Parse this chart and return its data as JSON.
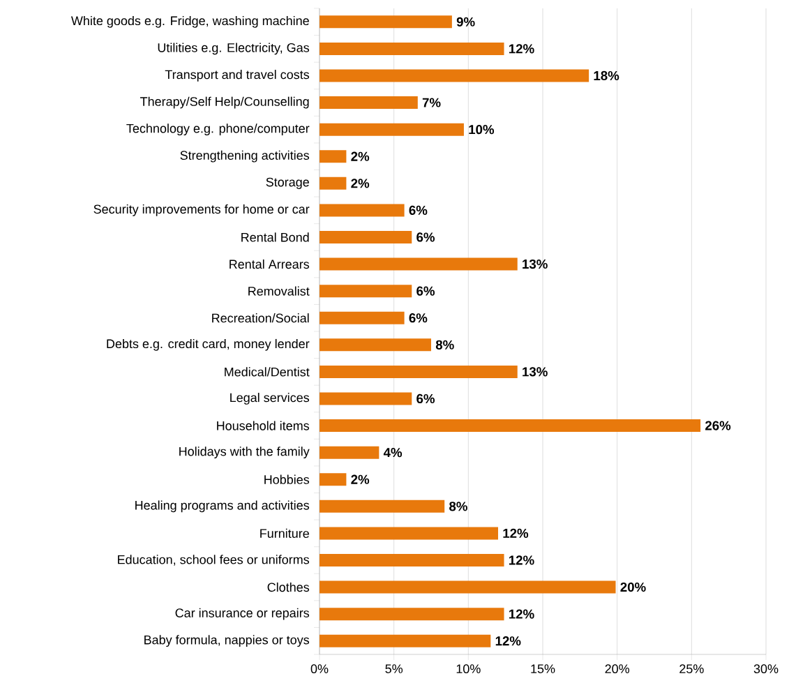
{
  "chart_data": {
    "type": "bar",
    "orientation": "horizontal",
    "categories": [
      "White goods e.g. Fridge, washing machine",
      "Utilities e.g. Electricity, Gas",
      "Transport and travel costs",
      "Therapy/Self Help/Counselling",
      "Technology e.g.  phone/computer",
      "Strengthening activities",
      "Storage",
      "Security improvements for home or car",
      "Rental Bond",
      "Rental Arrears",
      "Removalist",
      "Recreation/Social",
      "Debts e.g. credit card, money lender",
      "Medical/Dentist",
      "Legal services",
      "Household items",
      "Holidays with the family",
      "Hobbies",
      "Healing programs and activities",
      "Furniture",
      "Education, school fees or uniforms",
      "Clothes",
      "Car insurance or repairs",
      "Baby formula, nappies or toys"
    ],
    "values": [
      8.9,
      12.4,
      18.1,
      6.6,
      9.7,
      1.8,
      1.8,
      5.7,
      6.2,
      13.3,
      6.2,
      5.7,
      7.5,
      13.3,
      6.2,
      25.6,
      4.0,
      1.8,
      8.4,
      12.0,
      12.4,
      19.9,
      12.4,
      11.5
    ],
    "value_labels": [
      "9%",
      "12%",
      "18%",
      "7%",
      "10%",
      "2%",
      "2%",
      "6%",
      "6%",
      "13%",
      "6%",
      "6%",
      "8%",
      "13%",
      "6%",
      "26%",
      "4%",
      "2%",
      "8%",
      "12%",
      "12%",
      "20%",
      "12%",
      "12%"
    ],
    "color": "#e8790c",
    "xlim": [
      0,
      30
    ],
    "xticks": [
      {
        "value": 0,
        "label": "0%"
      },
      {
        "value": 5,
        "label": "5%"
      },
      {
        "value": 10,
        "label": "10%"
      },
      {
        "value": 15,
        "label": "15%"
      },
      {
        "value": 20,
        "label": "20%"
      },
      {
        "value": 25,
        "label": "25%"
      },
      {
        "value": 30,
        "label": "30%"
      }
    ],
    "grid": "x"
  }
}
